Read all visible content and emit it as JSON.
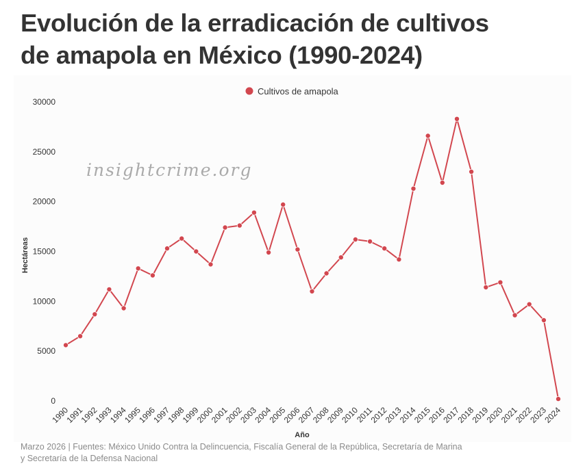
{
  "header": {
    "title_line1": "Evolución de la erradicación de cultivos",
    "title_line2": "de amapola en México (1990-2024)"
  },
  "watermark": "insightcrime.org",
  "footer": {
    "line1": "Marzo 2026 | Fuentes: México Unido Contra la Delincuencia, Fiscalía General de la República, Secretaría de Marina",
    "line2": "y Secretaría de la Defensa Nacional"
  },
  "colors": {
    "series": "#d2474f",
    "grid": "#e6e6e6",
    "plot_bg": "#fcfcfc"
  },
  "chart_data": {
    "type": "line",
    "title": "Evolución de la erradicación de cultivos de amapola en México (1990-2024)",
    "xlabel": "Año",
    "ylabel": "Hectáreas",
    "ylim": [
      0,
      30000
    ],
    "yticks": [
      0,
      5000,
      10000,
      15000,
      20000,
      25000,
      30000
    ],
    "grid": false,
    "legend_position": "top-center",
    "categories": [
      "1990",
      "1991",
      "1992",
      "1993",
      "1994",
      "1995",
      "1996",
      "1997",
      "1998",
      "1999",
      "2000",
      "2001",
      "2002",
      "2003",
      "2004",
      "2005",
      "2006",
      "2007",
      "2008",
      "2009",
      "2010",
      "2011",
      "2012",
      "2013",
      "2014",
      "2015",
      "2016",
      "2017",
      "2018",
      "2019",
      "2020",
      "2021",
      "2022",
      "2023",
      "2024"
    ],
    "series": [
      {
        "name": "Cultivos de amapola",
        "values": [
          5600,
          6500,
          8700,
          11200,
          9300,
          13300,
          12600,
          15300,
          16300,
          15000,
          13700,
          17400,
          17600,
          18900,
          14900,
          19700,
          15200,
          11000,
          12800,
          14400,
          16200,
          16000,
          15300,
          14200,
          21300,
          26600,
          21900,
          28300,
          23000,
          11400,
          11900,
          8600,
          9700,
          8100,
          200
        ]
      }
    ]
  }
}
